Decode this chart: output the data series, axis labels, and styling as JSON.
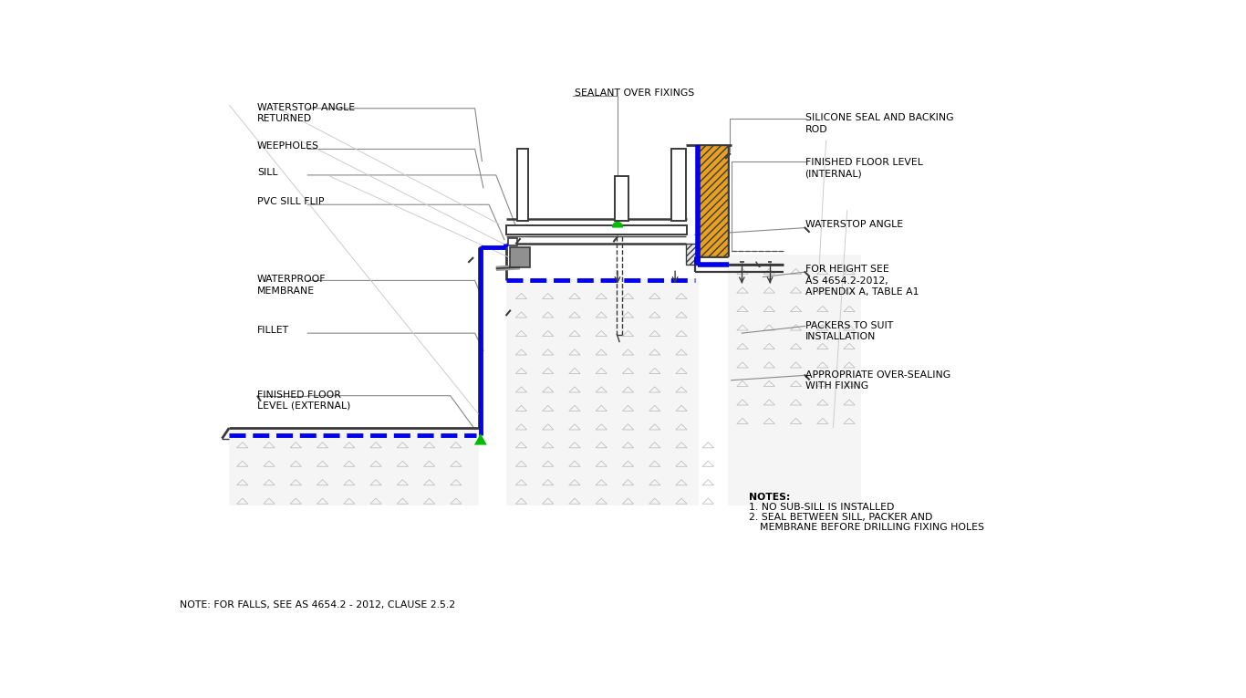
{
  "bg_color": "#ffffff",
  "line_color": "#3a3a3a",
  "blue_color": "#0000ee",
  "green_color": "#00bb00",
  "orange_color": "#e8a020",
  "gray_color": "#787878",
  "leader_color": "#888888",
  "concrete_dot_color": "#bbbbbb",
  "note_bottom_left": "NOTE: FOR FALLS, SEE AS 4654.2 - 2012, CLAUSE 2.5.2",
  "notes_title": "NOTES:",
  "note1": "1. NO SUB-SILL IS INSTALLED",
  "note2": "2. SEAL BETWEEN SILL, PACKER AND",
  "note3": "MEMBRANE BEFORE DRILLING FIXING HOLES",
  "lbl_waterstop_returned": "WATERSTOP ANGLE\nRETURNED",
  "lbl_weepholes": "WEEPHOLES",
  "lbl_sill": "SILL",
  "lbl_pvc": "PVC SILL FLIP",
  "lbl_membrane": "WATERPROOF\nMEMBRANE",
  "lbl_fillet": "FILLET",
  "lbl_ext_floor": "FINISHED FLOOR\nLEVEL (EXTERNAL)",
  "lbl_sealant": "SEALANT OVER FIXINGS",
  "lbl_silicone": "SILICONE SEAL AND BACKING\nROD",
  "lbl_int_floor": "FINISHED FLOOR LEVEL\n(INTERNAL)",
  "lbl_waterstop": "WATERSTOP ANGLE",
  "lbl_height": "FOR HEIGHT SEE\nAS 4654.2-2012,\nAPPENDIX A, TABLE A1",
  "lbl_packers": "PACKERS TO SUIT\nINSTALLATION",
  "lbl_oversealing": "APPROPRIATE OVER-SEALING\nWITH FIXING"
}
